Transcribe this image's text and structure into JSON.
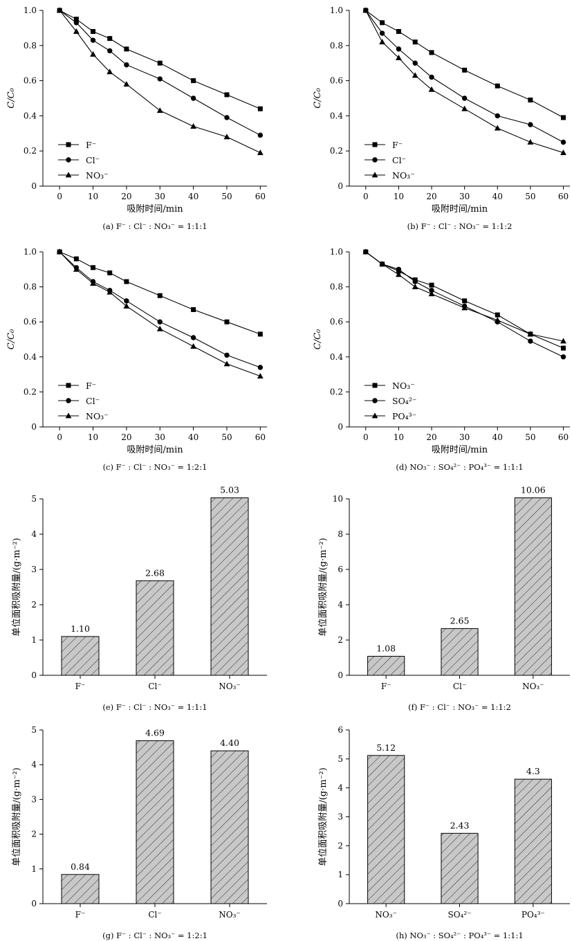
{
  "chart_data": [
    {
      "id": "a",
      "type": "line",
      "caption": "(a) F⁻ : Cl⁻ : NO₃⁻ = 1:1:1",
      "xlabel": "吸附时间/min",
      "ylabel": "C/C₀",
      "xlim": [
        -5,
        62
      ],
      "ylim": [
        0,
        1.0
      ],
      "xticks": [
        0,
        10,
        20,
        30,
        40,
        50,
        60
      ],
      "yticks": [
        0,
        0.2,
        0.4,
        0.6,
        0.8,
        1.0
      ],
      "x": [
        0,
        5,
        10,
        15,
        20,
        30,
        40,
        50,
        60
      ],
      "series": [
        {
          "name": "F⁻",
          "marker": "square",
          "values": [
            1.0,
            0.95,
            0.88,
            0.84,
            0.78,
            0.7,
            0.6,
            0.52,
            0.44
          ]
        },
        {
          "name": "Cl⁻",
          "marker": "circle",
          "values": [
            1.0,
            0.93,
            0.83,
            0.77,
            0.69,
            0.61,
            0.5,
            0.39,
            0.29
          ]
        },
        {
          "name": "NO₃⁻",
          "marker": "triangle",
          "values": [
            1.0,
            0.88,
            0.75,
            0.65,
            0.58,
            0.43,
            0.34,
            0.28,
            0.19
          ]
        }
      ]
    },
    {
      "id": "b",
      "type": "line",
      "caption": "(b) F⁻ : Cl⁻ : NO₃⁻ = 1:1:2",
      "xlabel": "吸附时间/min",
      "ylabel": "C/C₀",
      "xlim": [
        -5,
        62
      ],
      "ylim": [
        0,
        1.0
      ],
      "xticks": [
        0,
        10,
        20,
        30,
        40,
        50,
        60
      ],
      "yticks": [
        0,
        0.2,
        0.4,
        0.6,
        0.8,
        1.0
      ],
      "x": [
        0,
        5,
        10,
        15,
        20,
        30,
        40,
        50,
        60
      ],
      "series": [
        {
          "name": "F⁻",
          "marker": "square",
          "values": [
            1.0,
            0.93,
            0.88,
            0.82,
            0.76,
            0.66,
            0.57,
            0.49,
            0.39
          ]
        },
        {
          "name": "Cl⁻",
          "marker": "circle",
          "values": [
            1.0,
            0.87,
            0.78,
            0.7,
            0.62,
            0.5,
            0.4,
            0.35,
            0.25
          ]
        },
        {
          "name": "NO₃⁻",
          "marker": "triangle",
          "values": [
            1.0,
            0.82,
            0.73,
            0.63,
            0.55,
            0.44,
            0.33,
            0.25,
            0.19
          ]
        }
      ]
    },
    {
      "id": "c",
      "type": "line",
      "caption": "(c) F⁻ : Cl⁻ : NO₃⁻ = 1:2:1",
      "xlabel": "吸附时间/min",
      "ylabel": "C/C₀",
      "xlim": [
        -5,
        62
      ],
      "ylim": [
        0,
        1.0
      ],
      "xticks": [
        0,
        10,
        20,
        30,
        40,
        50,
        60
      ],
      "yticks": [
        0,
        0.2,
        0.4,
        0.6,
        0.8,
        1.0
      ],
      "x": [
        0,
        5,
        10,
        15,
        20,
        30,
        40,
        50,
        60
      ],
      "series": [
        {
          "name": "F⁻",
          "marker": "square",
          "values": [
            1.0,
            0.96,
            0.91,
            0.88,
            0.83,
            0.75,
            0.67,
            0.6,
            0.53
          ]
        },
        {
          "name": "Cl⁻",
          "marker": "circle",
          "values": [
            1.0,
            0.91,
            0.83,
            0.78,
            0.72,
            0.6,
            0.51,
            0.41,
            0.34
          ]
        },
        {
          "name": "NO₃⁻",
          "marker": "triangle",
          "values": [
            1.0,
            0.9,
            0.82,
            0.77,
            0.69,
            0.56,
            0.46,
            0.36,
            0.29
          ]
        }
      ]
    },
    {
      "id": "d",
      "type": "line",
      "caption": "(d) NO₃⁻ : SO₄²⁻ : PO₄³⁻ = 1:1:1",
      "xlabel": "吸附时间/min",
      "ylabel": "C/C₀",
      "xlim": [
        -5,
        62
      ],
      "ylim": [
        0,
        1.0
      ],
      "xticks": [
        0,
        10,
        20,
        30,
        40,
        50,
        60
      ],
      "yticks": [
        0,
        0.2,
        0.4,
        0.6,
        0.8,
        1.0
      ],
      "x": [
        0,
        5,
        10,
        15,
        20,
        30,
        40,
        50,
        60
      ],
      "series": [
        {
          "name": "NO₃⁻",
          "marker": "square",
          "values": [
            1.0,
            0.93,
            0.89,
            0.84,
            0.81,
            0.72,
            0.64,
            0.53,
            0.45
          ]
        },
        {
          "name": "SO₄²⁻",
          "marker": "circle",
          "values": [
            1.0,
            0.93,
            0.9,
            0.83,
            0.78,
            0.69,
            0.6,
            0.49,
            0.4
          ]
        },
        {
          "name": "PO₄³⁻",
          "marker": "triangle",
          "values": [
            1.0,
            0.93,
            0.87,
            0.8,
            0.76,
            0.68,
            0.61,
            0.53,
            0.49
          ]
        }
      ]
    },
    {
      "id": "e",
      "type": "bar",
      "caption": "(e) F⁻ : Cl⁻ : NO₃⁻ = 1:1:1",
      "ylabel": "单位面积吸附量/(g·m⁻²)",
      "ylim": [
        0,
        5
      ],
      "yticks": [
        0,
        1,
        2,
        3,
        4,
        5
      ],
      "categories": [
        "F⁻",
        "Cl⁻",
        "NO₃⁻"
      ],
      "values": [
        1.1,
        2.68,
        5.03
      ],
      "labels": [
        "1.10",
        "2.68",
        "5.03"
      ]
    },
    {
      "id": "f",
      "type": "bar",
      "caption": "(f) F⁻ : Cl⁻ : NO₃⁻ = 1:1:2",
      "ylabel": "单位面积吸附量/(g·m⁻²)",
      "ylim": [
        0,
        10
      ],
      "yticks": [
        0,
        2,
        4,
        6,
        8,
        10
      ],
      "categories": [
        "F⁻",
        "Cl⁻",
        "NO₃⁻"
      ],
      "values": [
        1.08,
        2.65,
        10.06
      ],
      "labels": [
        "1.08",
        "2.65",
        "10.06"
      ]
    },
    {
      "id": "g",
      "type": "bar",
      "caption": "(g) F⁻ : Cl⁻ : NO₃⁻ = 1:2:1",
      "ylabel": "单位面积吸附量/(g·m⁻²)",
      "ylim": [
        0,
        5
      ],
      "yticks": [
        0,
        1,
        2,
        3,
        4,
        5
      ],
      "categories": [
        "F⁻",
        "Cl⁻",
        "NO₃⁻"
      ],
      "values": [
        0.84,
        4.69,
        4.4
      ],
      "labels": [
        "0.84",
        "4.69",
        "4.40"
      ]
    },
    {
      "id": "h",
      "type": "bar",
      "caption": "(h) NO₃⁻ : SO₄²⁻ : PO₄³⁻ = 1:1:1",
      "ylabel": "单位面积吸附量/(g·m⁻²)",
      "ylim": [
        0,
        6
      ],
      "yticks": [
        0,
        1,
        2,
        3,
        4,
        5,
        6
      ],
      "categories": [
        "NO₃⁻",
        "SO₄²⁻",
        "PO₄³⁻"
      ],
      "values": [
        5.12,
        2.43,
        4.3
      ],
      "labels": [
        "5.12",
        "2.43",
        "4.3"
      ]
    }
  ]
}
